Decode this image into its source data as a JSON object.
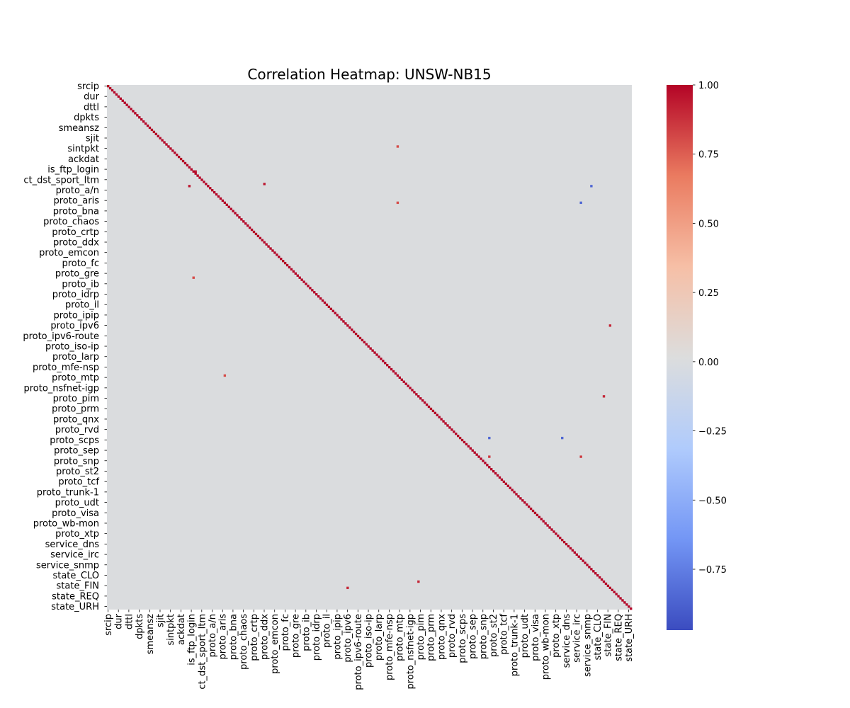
{
  "chart_data": {
    "type": "heatmap",
    "title": "Correlation Heatmap: UNSW-NB15",
    "n_features": 252,
    "row_tick_labels": [
      "srcip",
      "dur",
      "dttl",
      "dpkts",
      "smeansz",
      "sjit",
      "sintpkt",
      "ackdat",
      "is_ftp_login",
      "ct_dst_sport_ltm",
      "proto_a/n",
      "proto_aris",
      "proto_bna",
      "proto_chaos",
      "proto_crtp",
      "proto_ddx",
      "proto_emcon",
      "proto_fc",
      "proto_gre",
      "proto_ib",
      "proto_idrp",
      "proto_il",
      "proto_ipip",
      "proto_ipv6",
      "proto_ipv6-route",
      "proto_iso-ip",
      "proto_larp",
      "proto_mfe-nsp",
      "proto_mtp",
      "proto_nsfnet-igp",
      "proto_pim",
      "proto_prm",
      "proto_qnx",
      "proto_rvd",
      "proto_scps",
      "proto_sep",
      "proto_snp",
      "proto_st2",
      "proto_tcf",
      "proto_trunk-1",
      "proto_udt",
      "proto_visa",
      "proto_wb-mon",
      "proto_xtp",
      "service_dns",
      "service_irc",
      "service_snmp",
      "state_CLO",
      "state_FIN",
      "state_REQ",
      "state_URH"
    ],
    "col_tick_labels": [
      "srcip",
      "dur",
      "dttl",
      "dpkts",
      "smeansz",
      "sjit",
      "sintpkt",
      "ackdat",
      "is_ftp_login",
      "ct_dst_sport_ltm",
      "proto_a/n",
      "proto_aris",
      "proto_bna",
      "proto_chaos",
      "proto_crtp",
      "proto_ddx",
      "proto_emcon",
      "proto_fc",
      "proto_gre",
      "proto_ib",
      "proto_idrp",
      "proto_il",
      "proto_ipip",
      "proto_ipv6",
      "proto_ipv6-route",
      "proto_iso-ip",
      "proto_larp",
      "proto_mfe-nsp",
      "proto_mtp",
      "proto_nsfnet-igp",
      "proto_pim",
      "proto_prm",
      "proto_qnx",
      "proto_rvd",
      "proto_scps",
      "proto_sep",
      "proto_snp",
      "proto_st2",
      "proto_tcf",
      "proto_trunk-1",
      "proto_udt",
      "proto_visa",
      "proto_wb-mon",
      "proto_xtp",
      "service_dns",
      "service_irc",
      "service_snmp",
      "state_CLO",
      "state_FIN",
      "state_REQ",
      "state_URH"
    ],
    "tick_index_step": 5,
    "diagonal_value": 1.0,
    "background_value": 0.0,
    "notable_cells": [
      {
        "i": 41,
        "j": 42,
        "v": 0.95
      },
      {
        "i": 48,
        "j": 39,
        "v": 0.95
      },
      {
        "i": 47,
        "j": 75,
        "v": 0.95
      },
      {
        "i": 56,
        "j": 227,
        "v": -0.85
      },
      {
        "i": 48,
        "j": 232,
        "v": -0.85
      },
      {
        "i": 56,
        "j": 139,
        "v": 0.8
      },
      {
        "i": 139,
        "j": 56,
        "v": 0.8
      },
      {
        "i": 29,
        "j": 139,
        "v": 0.8
      },
      {
        "i": 92,
        "j": 41,
        "v": 0.8
      },
      {
        "i": 115,
        "j": 241,
        "v": 0.9
      },
      {
        "i": 241,
        "j": 115,
        "v": 0.9
      },
      {
        "i": 149,
        "j": 238,
        "v": 0.9
      },
      {
        "i": 238,
        "j": 149,
        "v": 0.9
      },
      {
        "i": 169,
        "j": 183,
        "v": -0.85
      },
      {
        "i": 169,
        "j": 218,
        "v": -0.85
      },
      {
        "i": 178,
        "j": 183,
        "v": 0.85
      },
      {
        "i": 178,
        "j": 227,
        "v": 0.85
      }
    ],
    "colorbar": {
      "vmin": -0.97,
      "vmax": 1.0,
      "ticks": [
        "1.00",
        "0.75",
        "0.50",
        "0.25",
        "0.00",
        "−0.25",
        "−0.50",
        "−0.75"
      ],
      "tick_values": [
        1.0,
        0.75,
        0.5,
        0.25,
        0.0,
        -0.25,
        -0.5,
        -0.75
      ],
      "colormap": "coolwarm",
      "color_stops": [
        "#3b4cc0",
        "#7396f5",
        "#b0cbfc",
        "#dcdddd",
        "#f6bfa6",
        "#ea7b60",
        "#b40426"
      ]
    }
  }
}
